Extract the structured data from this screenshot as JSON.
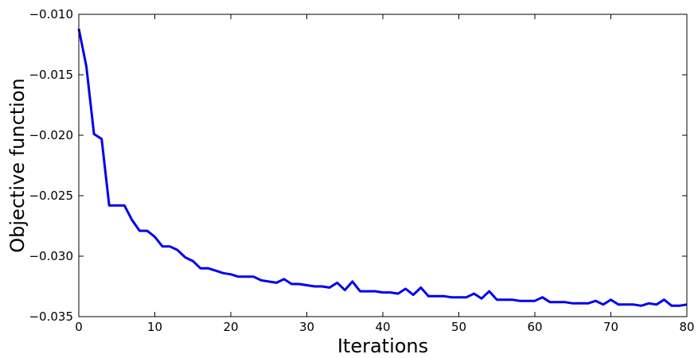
{
  "chart_data": {
    "type": "line",
    "title": "",
    "xlabel": "Iterations",
    "ylabel": "Objective function",
    "xlim": [
      0,
      80
    ],
    "ylim": [
      -0.035,
      -0.01
    ],
    "x_ticks": [
      0,
      10,
      20,
      30,
      40,
      50,
      60,
      70,
      80
    ],
    "x_tick_labels": [
      "0",
      "10",
      "20",
      "30",
      "40",
      "50",
      "60",
      "70",
      "80"
    ],
    "y_ticks": [
      -0.035,
      -0.03,
      -0.025,
      -0.02,
      -0.015,
      -0.01
    ],
    "y_tick_labels": [
      "−0.035",
      "−0.030",
      "−0.025",
      "−0.020",
      "−0.015",
      "−0.010"
    ],
    "grid": false,
    "legend": "none",
    "series": [
      {
        "color": "#0000ee",
        "x": [
          0,
          1,
          2,
          3,
          4,
          5,
          6,
          7,
          8,
          9,
          10,
          11,
          12,
          13,
          14,
          15,
          16,
          17,
          18,
          19,
          20,
          21,
          22,
          23,
          24,
          25,
          26,
          27,
          28,
          29,
          30,
          31,
          32,
          33,
          34,
          35,
          36,
          37,
          38,
          39,
          40,
          41,
          42,
          43,
          44,
          45,
          46,
          47,
          48,
          49,
          50,
          51,
          52,
          53,
          54,
          55,
          56,
          57,
          58,
          59,
          60,
          61,
          62,
          63,
          64,
          65,
          66,
          67,
          68,
          69,
          70,
          71,
          72,
          73,
          74,
          75,
          76,
          77,
          78,
          79,
          80
        ],
        "y": [
          -0.0112,
          -0.0143,
          -0.0199,
          -0.0203,
          -0.0258,
          -0.0258,
          -0.0258,
          -0.027,
          -0.0279,
          -0.0279,
          -0.0284,
          -0.0292,
          -0.0292,
          -0.0295,
          -0.0301,
          -0.0304,
          -0.031,
          -0.031,
          -0.0312,
          -0.0314,
          -0.0315,
          -0.0317,
          -0.0317,
          -0.0317,
          -0.032,
          -0.0321,
          -0.0322,
          -0.0319,
          -0.0323,
          -0.0323,
          -0.0324,
          -0.0325,
          -0.0325,
          -0.0326,
          -0.0322,
          -0.0328,
          -0.0321,
          -0.0329,
          -0.0329,
          -0.0329,
          -0.033,
          -0.033,
          -0.0331,
          -0.0327,
          -0.0332,
          -0.0326,
          -0.0333,
          -0.0333,
          -0.0333,
          -0.0334,
          -0.0334,
          -0.0334,
          -0.0331,
          -0.0335,
          -0.0329,
          -0.0336,
          -0.0336,
          -0.0336,
          -0.0337,
          -0.0337,
          -0.0337,
          -0.0334,
          -0.0338,
          -0.0338,
          -0.0338,
          -0.0339,
          -0.0339,
          -0.0339,
          -0.0337,
          -0.034,
          -0.0336,
          -0.034,
          -0.034,
          -0.034,
          -0.0341,
          -0.0339,
          -0.034,
          -0.0336,
          -0.0341,
          -0.0341,
          -0.034
        ]
      }
    ]
  }
}
